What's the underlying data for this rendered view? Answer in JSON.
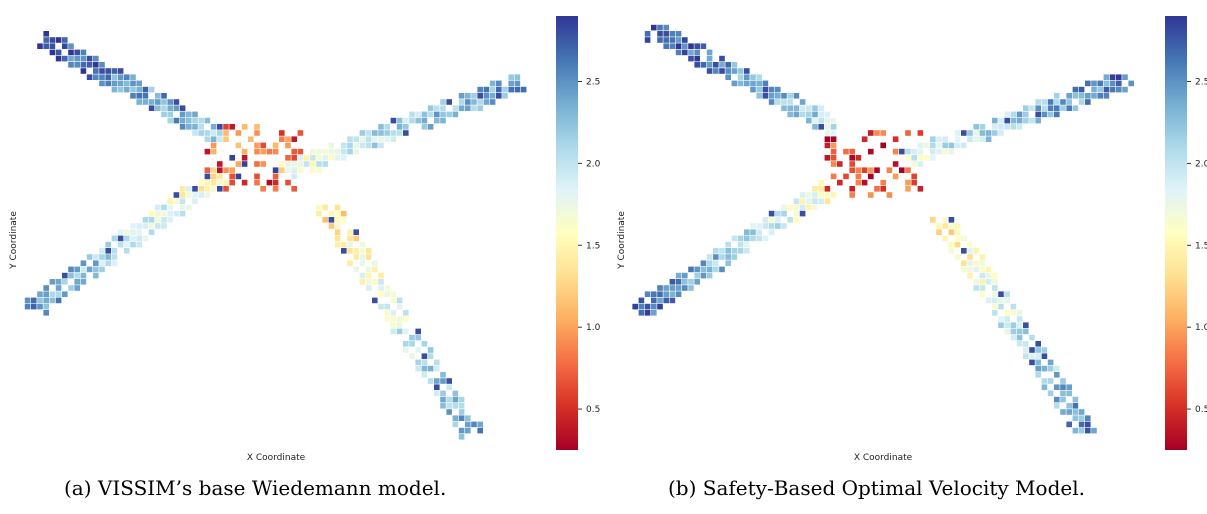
{
  "chart_data": [
    {
      "type": "heatmap",
      "caption": "(a)  VISSIM’s base Wiedemann model.",
      "xlabel": "X Coordinate",
      "ylabel": "Y Coordinate",
      "colorbar": {
        "colormap": "RdYlBu",
        "range": [
          0.25,
          2.9
        ],
        "ticks": [
          "0.5",
          "1.0",
          "1.5",
          "2.0",
          "2.5"
        ]
      },
      "grid": false,
      "arms": [
        {
          "name": "north-west",
          "from": [
            0.38,
            0.17
          ],
          "to": [
            0.01,
            0.49
          ],
          "value_from": 2.2,
          "value_to": 2.75
        },
        {
          "name": "east",
          "from": [
            0.52,
            0.06
          ],
          "to": [
            1.0,
            0.35
          ],
          "value_from": 1.7,
          "value_to": 2.5
        },
        {
          "name": "south-west",
          "from": [
            0.38,
            0.05
          ],
          "to": [
            -0.01,
            -0.39
          ],
          "value_from": 1.5,
          "value_to": 2.5
        },
        {
          "name": "south-east",
          "from": [
            0.6,
            -0.06
          ],
          "to": [
            0.9,
            -0.8
          ],
          "value_from": 1.3,
          "value_to": 2.4
        }
      ],
      "center": {
        "x": 0.45,
        "y": 0.1,
        "value_range": [
          0.3,
          1.2
        ],
        "extra_highs": 2.85
      }
    },
    {
      "type": "heatmap",
      "caption": "(b)  Safety-Based Optimal Velocity Model.",
      "xlabel": "X Coordinate",
      "ylabel": "Y Coordinate",
      "colorbar": {
        "colormap": "RdYlBu",
        "range": [
          0.25,
          2.9
        ],
        "ticks": [
          "0.5",
          "1.0",
          "1.5",
          "2.0",
          "2.5"
        ]
      },
      "grid": false,
      "arms": [
        {
          "name": "north-west",
          "from": [
            0.4,
            0.2
          ],
          "to": [
            0.02,
            0.52
          ],
          "value_from": 2.0,
          "value_to": 2.85
        },
        {
          "name": "east",
          "from": [
            0.55,
            0.1
          ],
          "to": [
            1.0,
            0.36
          ],
          "value_from": 1.8,
          "value_to": 2.6
        },
        {
          "name": "south-west",
          "from": [
            0.38,
            0.0
          ],
          "to": [
            -0.01,
            -0.4
          ],
          "value_from": 1.6,
          "value_to": 2.7
        },
        {
          "name": "south-east",
          "from": [
            0.62,
            -0.1
          ],
          "to": [
            0.92,
            -0.8
          ],
          "value_from": 1.4,
          "value_to": 2.5
        }
      ],
      "center": {
        "x": 0.47,
        "y": 0.08,
        "value_range": [
          0.2,
          1.0
        ],
        "extra_highs": 0
      }
    }
  ],
  "captions": {
    "a": "(a)  VISSIM’s base Wiedemann model.",
    "b": "(b)  Safety-Based Optimal Velocity Model."
  }
}
